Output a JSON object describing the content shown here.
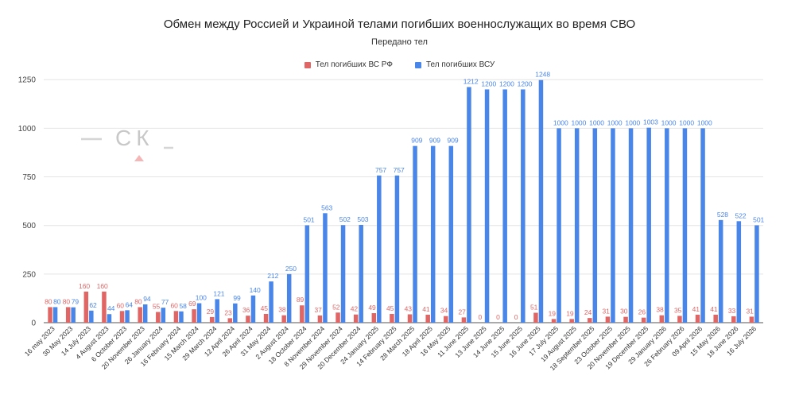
{
  "header": {
    "title": "Обмен между Россией и Украиной телами погибших военнослужащих во время СВО",
    "subtitle": "Передано тел"
  },
  "legend": {
    "items": [
      {
        "label": "Тел погибших ВС  РФ",
        "color": "#e06666"
      },
      {
        "label": "Тел погибших ВСУ",
        "color": "#4a86e8"
      }
    ]
  },
  "watermark": {
    "text": "СК"
  },
  "chart_data": {
    "type": "bar",
    "title": "Обмен между Россией и Украиной телами погибших военнослужащих во время СВО",
    "subtitle": "Передано тел",
    "xlabel": "",
    "ylabel": "",
    "ylim": [
      0,
      1300
    ],
    "yticks": [
      0,
      250,
      500,
      750,
      1000,
      1250
    ],
    "grid": true,
    "legend_position": "top",
    "categories": [
      "16 may 2023",
      "30 May 2023",
      "14 July 2023",
      "4 August 2023",
      "6 October 2023",
      "20 November 2023",
      "26 January 2024",
      "16 February 2024",
      "15 March 2024",
      "29 March 2024",
      "12 April 2024",
      "26 April 2024",
      "31 May 2024",
      "2 August 2024",
      "18 October 2024",
      "8 November 2024",
      "29 November 2024",
      "20 December 2024",
      "24 January 2025",
      "14 February 2025",
      "28 March 2025",
      "18 April 2025",
      "16 May 2025",
      "11 June 2025",
      "13 June 2025",
      "14 June 2025",
      "15 June 2025",
      "16 June 2025",
      "17 July 2025",
      "19 August 2025",
      "18 September 2025",
      "23 October 2025",
      "20 November 2025",
      "19 December 2025",
      "29 January 2026",
      "26 February 2026",
      "09 April 2026",
      "15 May 2026",
      "18 June 2026",
      "16 July 2026"
    ],
    "series": [
      {
        "name": "Тел погибших ВС  РФ",
        "color": "#e06666",
        "values": [
          80,
          80,
          160,
          160,
          60,
          80,
          55,
          60,
          69,
          29,
          23,
          36,
          45,
          38,
          89,
          37,
          52,
          42,
          49,
          45,
          43,
          41,
          34,
          27,
          0,
          0,
          0,
          51,
          19,
          19,
          24,
          31,
          30,
          26,
          38,
          35,
          41,
          41,
          33,
          31
        ]
      },
      {
        "name": "Тел погибших ВСУ",
        "color": "#4a86e8",
        "values": [
          80,
          79,
          62,
          44,
          64,
          94,
          77,
          58,
          100,
          121,
          99,
          140,
          212,
          250,
          501,
          563,
          502,
          503,
          757,
          757,
          909,
          909,
          909,
          1212,
          1200,
          1200,
          1200,
          1248,
          1000,
          1000,
          1000,
          1000,
          1000,
          1003,
          1000,
          1000,
          1000,
          528,
          522,
          501
        ]
      }
    ]
  }
}
